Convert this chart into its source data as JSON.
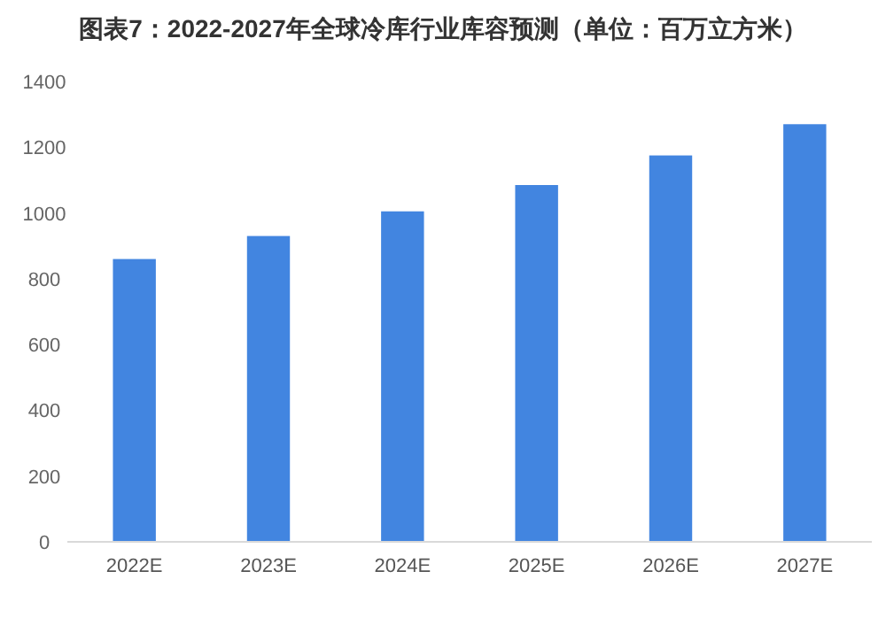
{
  "chart_data": {
    "type": "bar",
    "title": "图表7：2022-2027年全球冷库行业库容预测（单位：百万立方米）",
    "categories": [
      "2022E",
      "2023E",
      "2024E",
      "2025E",
      "2026E",
      "2027E"
    ],
    "values": [
      860,
      930,
      1005,
      1085,
      1175,
      1270
    ],
    "color": "#4285e0",
    "ylim": [
      0,
      1400
    ],
    "yticks": [
      0,
      200,
      400,
      600,
      800,
      1000,
      1200,
      1400
    ],
    "grid": false
  }
}
